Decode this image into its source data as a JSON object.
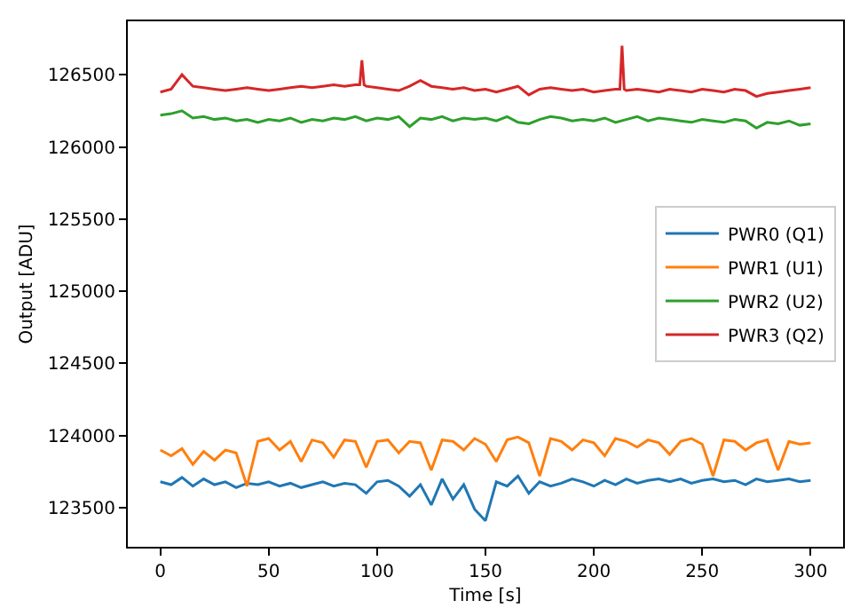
{
  "chart_data": {
    "type": "line",
    "xlabel": "Time [s]",
    "ylabel": "Output [ADU]",
    "x": [
      0,
      5,
      10,
      15,
      20,
      25,
      30,
      35,
      40,
      45,
      50,
      55,
      60,
      65,
      70,
      75,
      80,
      85,
      90,
      95,
      100,
      105,
      110,
      115,
      120,
      125,
      130,
      135,
      140,
      145,
      150,
      155,
      160,
      165,
      170,
      175,
      180,
      185,
      190,
      195,
      200,
      205,
      210,
      215,
      220,
      225,
      230,
      235,
      240,
      245,
      250,
      255,
      260,
      265,
      270,
      275,
      280,
      285,
      290,
      295,
      300
    ],
    "xlim": [
      -15,
      315
    ],
    "xticks": [
      0,
      50,
      100,
      150,
      200,
      250,
      300
    ],
    "ylim": [
      123230,
      126870
    ],
    "yticks": [
      123500,
      124000,
      124500,
      125000,
      125500,
      126000,
      126500
    ],
    "legend": "right",
    "series": [
      {
        "name": "PWR0 (Q1)",
        "color": "#1f77b4",
        "values": [
          123680,
          123660,
          123710,
          123650,
          123700,
          123660,
          123680,
          123640,
          123670,
          123660,
          123680,
          123650,
          123670,
          123640,
          123660,
          123680,
          123650,
          123670,
          123660,
          123600,
          123680,
          123690,
          123650,
          123580,
          123660,
          123520,
          123700,
          123560,
          123660,
          123490,
          123410,
          123680,
          123650,
          123720,
          123600,
          123680,
          123650,
          123670,
          123700,
          123680,
          123650,
          123690,
          123660,
          123700,
          123670,
          123690,
          123700,
          123680,
          123700,
          123670,
          123690,
          123700,
          123680,
          123690,
          123660,
          123700,
          123680,
          123690,
          123700,
          123680,
          123690
        ]
      },
      {
        "name": "PWR1 (U1)",
        "color": "#ff7f0e",
        "values": [
          123900,
          123860,
          123910,
          123800,
          123890,
          123830,
          123900,
          123880,
          123650,
          123960,
          123980,
          123900,
          123960,
          123820,
          123970,
          123950,
          123850,
          123970,
          123960,
          123780,
          123960,
          123970,
          123880,
          123960,
          123950,
          123760,
          123970,
          123960,
          123900,
          123980,
          123940,
          123820,
          123970,
          123990,
          123950,
          123720,
          123980,
          123960,
          123900,
          123970,
          123950,
          123860,
          123980,
          123960,
          123920,
          123970,
          123950,
          123870,
          123960,
          123980,
          123940,
          123720,
          123970,
          123960,
          123900,
          123950,
          123970,
          123760,
          123960,
          123940,
          123950
        ]
      },
      {
        "name": "PWR2 (U2)",
        "color": "#2ca02c",
        "values": [
          126220,
          126230,
          126250,
          126200,
          126210,
          126190,
          126200,
          126180,
          126190,
          126170,
          126190,
          126180,
          126200,
          126170,
          126190,
          126180,
          126200,
          126190,
          126210,
          126180,
          126200,
          126190,
          126210,
          126140,
          126200,
          126190,
          126210,
          126180,
          126200,
          126190,
          126200,
          126180,
          126210,
          126170,
          126160,
          126190,
          126210,
          126200,
          126180,
          126190,
          126180,
          126200,
          126170,
          126190,
          126210,
          126180,
          126200,
          126190,
          126180,
          126170,
          126190,
          126180,
          126170,
          126190,
          126180,
          126130,
          126170,
          126160,
          126180,
          126150,
          126160
        ]
      },
      {
        "name": "PWR3 (Q2)",
        "color": "#d62728",
        "x": [
          0,
          5,
          10,
          15,
          20,
          25,
          30,
          35,
          40,
          45,
          50,
          55,
          60,
          65,
          70,
          75,
          80,
          85,
          90,
          92,
          93,
          94,
          95,
          100,
          105,
          110,
          115,
          120,
          125,
          130,
          135,
          140,
          145,
          150,
          155,
          160,
          165,
          170,
          175,
          180,
          185,
          190,
          195,
          200,
          205,
          210,
          212,
          213,
          214,
          215,
          220,
          225,
          230,
          235,
          240,
          245,
          250,
          255,
          260,
          265,
          270,
          275,
          280,
          285,
          290,
          295,
          300
        ],
        "values": [
          126380,
          126400,
          126500,
          126420,
          126410,
          126400,
          126390,
          126400,
          126410,
          126400,
          126390,
          126400,
          126410,
          126420,
          126410,
          126420,
          126430,
          126420,
          126430,
          126430,
          126600,
          126430,
          126420,
          126410,
          126400,
          126390,
          126420,
          126460,
          126420,
          126410,
          126400,
          126410,
          126390,
          126400,
          126380,
          126400,
          126420,
          126360,
          126400,
          126410,
          126400,
          126390,
          126400,
          126380,
          126390,
          126400,
          126400,
          126700,
          126400,
          126390,
          126400,
          126390,
          126380,
          126400,
          126390,
          126380,
          126400,
          126390,
          126380,
          126400,
          126390,
          126350,
          126370,
          126380,
          126390,
          126400,
          126410
        ]
      }
    ]
  }
}
